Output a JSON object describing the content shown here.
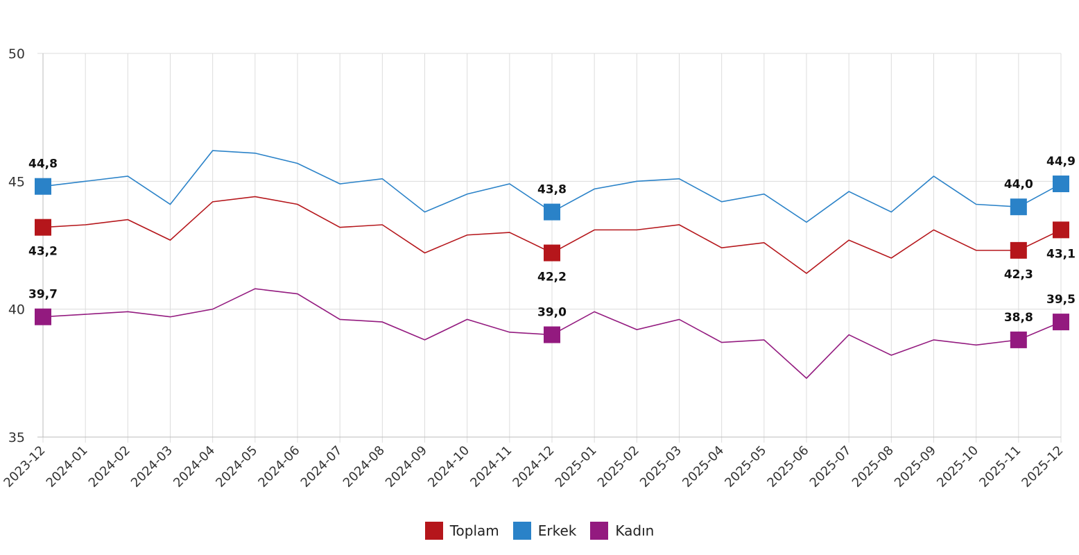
{
  "chart_data": {
    "type": "line",
    "title": "",
    "xlabel": "",
    "ylabel": "",
    "ylim": [
      35,
      50
    ],
    "yticks": [
      35,
      40,
      45,
      50
    ],
    "grid": true,
    "legend_position": "bottom",
    "categories": [
      "2023-12",
      "2024-01",
      "2024-02",
      "2024-03",
      "2024-04",
      "2024-05",
      "2024-06",
      "2024-07",
      "2024-08",
      "2024-09",
      "2024-10",
      "2024-11",
      "2024-12",
      "2025-01",
      "2025-02",
      "2025-03",
      "2025-04",
      "2025-05",
      "2025-06",
      "2025-07",
      "2025-08",
      "2025-09",
      "2025-10",
      "2025-11",
      "2025-12"
    ],
    "series": [
      {
        "name": "Toplam",
        "color": "#b5161b",
        "label_position": "below",
        "values": [
          43.2,
          43.3,
          43.5,
          42.7,
          44.2,
          44.4,
          44.1,
          43.2,
          43.3,
          42.2,
          42.9,
          43.0,
          42.2,
          43.1,
          43.1,
          43.3,
          42.4,
          42.6,
          41.4,
          42.7,
          42.0,
          43.1,
          42.3,
          42.3,
          43.1
        ],
        "marked_points": [
          {
            "index": 0,
            "label": "43,2"
          },
          {
            "index": 12,
            "label": "42,2"
          },
          {
            "index": 23,
            "label": "42,3"
          },
          {
            "index": 24,
            "label": "43,1"
          }
        ]
      },
      {
        "name": "Erkek",
        "color": "#2a82c8",
        "label_position": "above",
        "values": [
          44.8,
          45.0,
          45.2,
          44.1,
          46.2,
          46.1,
          45.7,
          44.9,
          45.1,
          43.8,
          44.5,
          44.9,
          43.8,
          44.7,
          45.0,
          45.1,
          44.2,
          44.5,
          43.4,
          44.6,
          43.8,
          45.2,
          44.1,
          44.0,
          44.9
        ],
        "marked_points": [
          {
            "index": 0,
            "label": "44,8"
          },
          {
            "index": 12,
            "label": "43,8"
          },
          {
            "index": 23,
            "label": "44,0"
          },
          {
            "index": 24,
            "label": "44,9"
          }
        ]
      },
      {
        "name": "Kadın",
        "color": "#931a7f",
        "label_position": "above",
        "values": [
          39.7,
          39.8,
          39.9,
          39.7,
          40.0,
          40.8,
          40.6,
          39.6,
          39.5,
          38.8,
          39.6,
          39.1,
          39.0,
          39.9,
          39.2,
          39.6,
          38.7,
          38.8,
          37.3,
          39.0,
          38.2,
          38.8,
          38.6,
          38.8,
          39.5
        ],
        "marked_points": [
          {
            "index": 0,
            "label": "39,7"
          },
          {
            "index": 12,
            "label": "39,0"
          },
          {
            "index": 23,
            "label": "38,8"
          },
          {
            "index": 24,
            "label": "39,5"
          }
        ]
      }
    ]
  }
}
